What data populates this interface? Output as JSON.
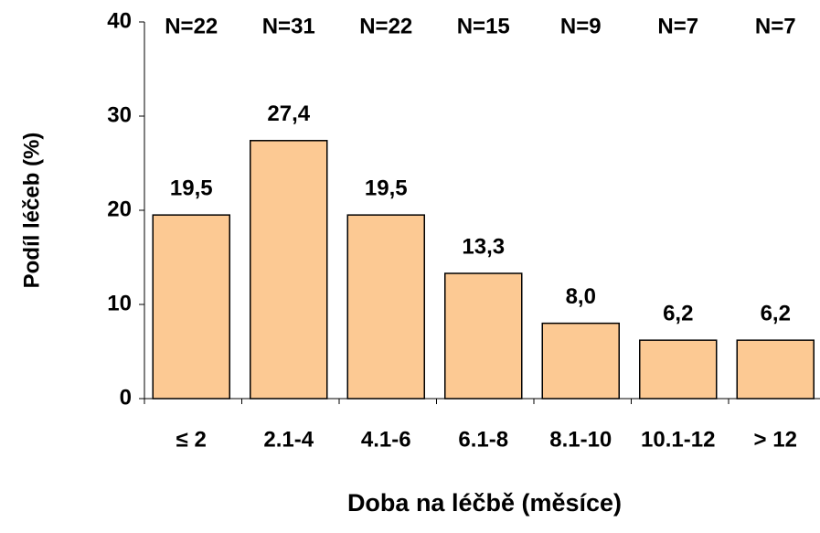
{
  "chart_data": {
    "type": "bar",
    "categories": [
      "≤ 2",
      "2.1-4",
      "4.1-6",
      "6.1-8",
      "8.1-10",
      "10.1-12",
      "> 12"
    ],
    "values": [
      19.5,
      27.4,
      19.5,
      13.3,
      8.0,
      6.2,
      6.2
    ],
    "value_labels": [
      "19,5",
      "27,4",
      "19,5",
      "13,3",
      "8,0",
      "6,2",
      "6,2"
    ],
    "annotations": [
      "N=22",
      "N=31",
      "N=22",
      "N=15",
      "N=9",
      "N=7",
      "N=7"
    ],
    "color": "#fcc993",
    "ylabel": "Podíl léčeb (%)",
    "xlabel": "Doba na léčbě (měsíce)",
    "ylim": [
      0,
      40
    ],
    "yticks": [
      0,
      10,
      20,
      30,
      40
    ],
    "grid": false
  }
}
